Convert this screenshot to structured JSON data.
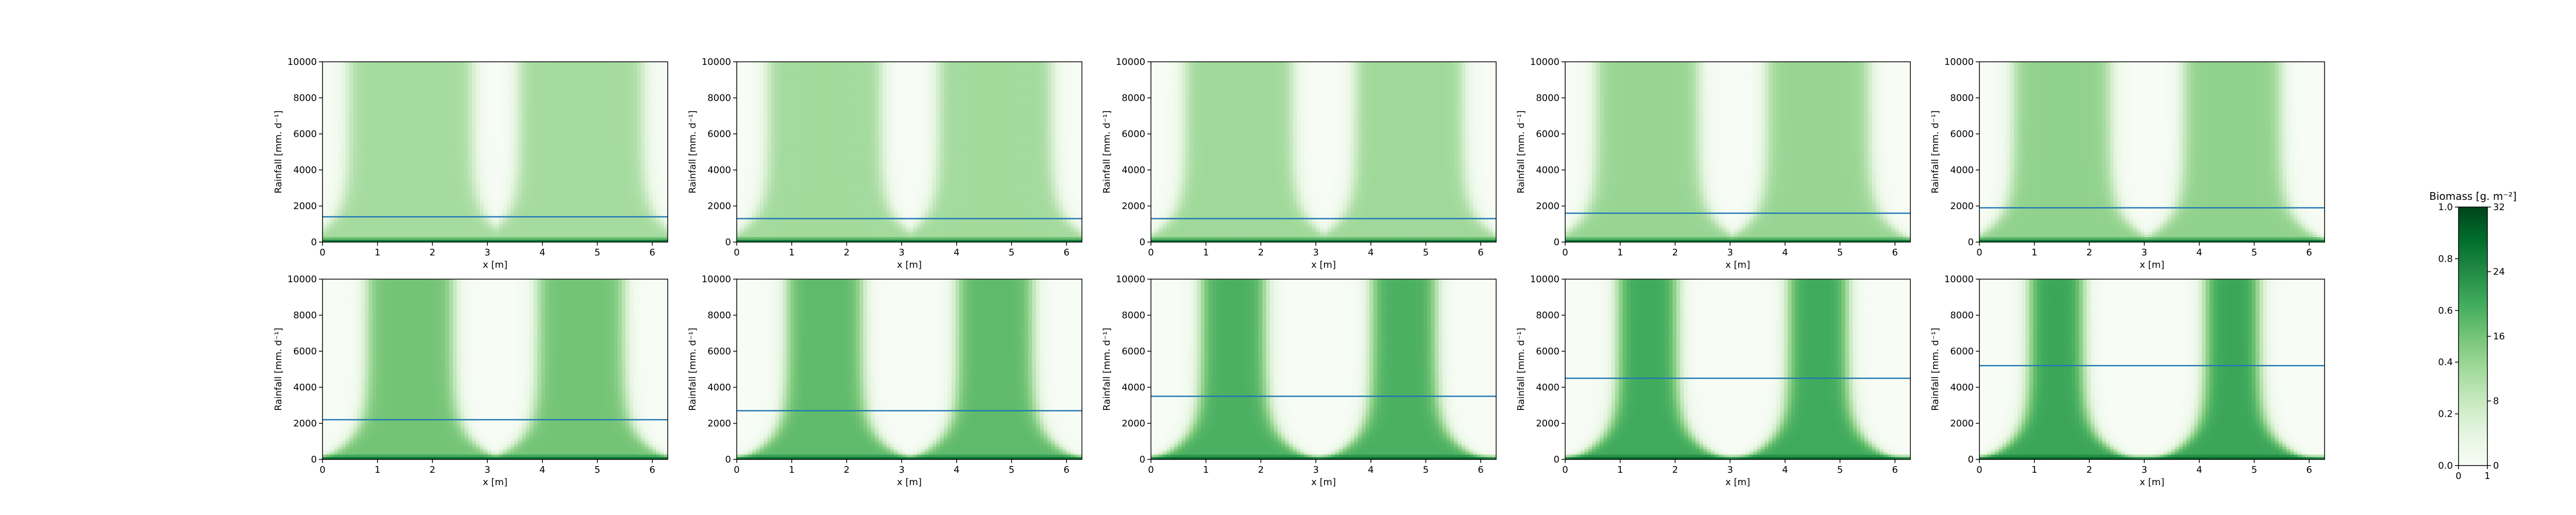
{
  "chart_data": {
    "type": "heatmap",
    "colormap": "Greens",
    "panels": [
      {
        "ylabel": "Rainfall [mm. d⁻¹]",
        "xlabel": "x [m]",
        "blue_line_y": 1400,
        "xlim": [
          0,
          6.28
        ],
        "ylim": [
          0,
          10000
        ],
        "patch_centers": [
          1.6,
          4.7
        ],
        "patch_halfwidth": 1.15,
        "intensity": 0.36
      },
      {
        "ylabel": "Rainfall [mm. d⁻¹]",
        "xlabel": "x [m]",
        "blue_line_y": 1300,
        "xlim": [
          0,
          6.28
        ],
        "ylim": [
          0,
          10000
        ],
        "patch_centers": [
          1.6,
          4.7
        ],
        "patch_halfwidth": 1.05,
        "intensity": 0.37
      },
      {
        "ylabel": "Rainfall [mm. d⁻¹]",
        "xlabel": "x [m]",
        "blue_line_y": 1300,
        "xlim": [
          0,
          6.28
        ],
        "ylim": [
          0,
          10000
        ],
        "patch_centers": [
          1.6,
          4.7
        ],
        "patch_halfwidth": 1.0,
        "intensity": 0.38
      },
      {
        "ylabel": "Rainfall [mm. d⁻¹]",
        "xlabel": "x [m]",
        "blue_line_y": 1600,
        "xlim": [
          0,
          6.28
        ],
        "ylim": [
          0,
          10000
        ],
        "patch_centers": [
          1.5,
          4.6
        ],
        "patch_halfwidth": 0.95,
        "intensity": 0.4
      },
      {
        "ylabel": "Rainfall [mm. d⁻¹]",
        "xlabel": "x [m]",
        "blue_line_y": 1900,
        "xlim": [
          0,
          6.28
        ],
        "ylim": [
          0,
          10000
        ],
        "patch_centers": [
          1.5,
          4.6
        ],
        "patch_halfwidth": 0.9,
        "intensity": 0.42
      },
      {
        "ylabel": "Rainfall [mm. d⁻¹]",
        "xlabel": "x [m]",
        "blue_line_y": 2200,
        "xlim": [
          0,
          6.28
        ],
        "ylim": [
          0,
          10000
        ],
        "patch_centers": [
          1.6,
          4.7
        ],
        "patch_halfwidth": 0.8,
        "intensity": 0.5
      },
      {
        "ylabel": "Rainfall [mm. d⁻¹]",
        "xlabel": "x [m]",
        "blue_line_y": 2700,
        "xlim": [
          0,
          6.28
        ],
        "ylim": [
          0,
          10000
        ],
        "patch_centers": [
          1.6,
          4.7
        ],
        "patch_halfwidth": 0.7,
        "intensity": 0.55
      },
      {
        "ylabel": "Rainfall [mm. d⁻¹]",
        "xlabel": "x [m]",
        "blue_line_y": 3500,
        "xlim": [
          0,
          6.28
        ],
        "ylim": [
          0,
          10000
        ],
        "patch_centers": [
          1.5,
          4.6
        ],
        "patch_halfwidth": 0.6,
        "intensity": 0.6
      },
      {
        "ylabel": "Rainfall [mm. d⁻¹]",
        "xlabel": "x [m]",
        "blue_line_y": 4500,
        "xlim": [
          0,
          6.28
        ],
        "ylim": [
          0,
          10000
        ],
        "patch_centers": [
          1.5,
          4.6
        ],
        "patch_halfwidth": 0.55,
        "intensity": 0.63
      },
      {
        "ylabel": "Rainfall [mm. d⁻¹]",
        "xlabel": "x [m]",
        "blue_line_y": 5200,
        "xlim": [
          0,
          6.28
        ],
        "ylim": [
          0,
          10000
        ],
        "patch_centers": [
          1.4,
          4.6
        ],
        "patch_halfwidth": 0.5,
        "intensity": 0.65
      }
    ],
    "x_ticks": [
      "0",
      "1",
      "2",
      "3",
      "4",
      "5",
      "6"
    ],
    "x_tick_values": [
      0,
      1,
      2,
      3,
      4,
      5,
      6
    ],
    "y_ticks": [
      "0",
      "2000",
      "4000",
      "6000",
      "8000",
      "10000"
    ],
    "y_tick_values": [
      0,
      2000,
      4000,
      6000,
      8000,
      10000
    ],
    "colorbar": {
      "title": "Biomass [g. m⁻²]",
      "left_ticks": [
        "0.0",
        "0.2",
        "0.4",
        "0.6",
        "0.8",
        "1.0"
      ],
      "right_ticks": [
        "0",
        "8",
        "16",
        "24",
        "32"
      ],
      "bottom_ticks": [
        "0",
        "1"
      ]
    },
    "colors": {
      "line": "#1f77b4",
      "light": "#f7fcf5",
      "dark": "#00441b"
    }
  }
}
